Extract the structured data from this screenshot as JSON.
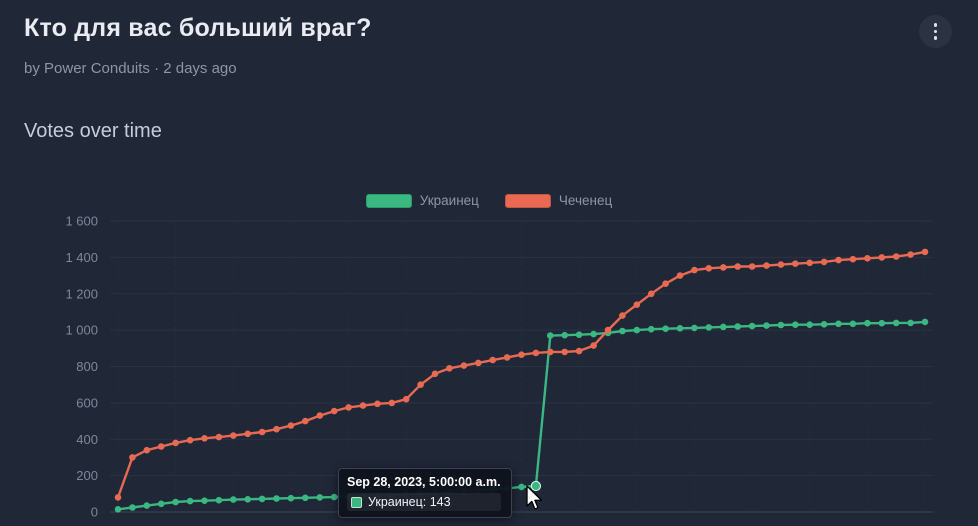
{
  "header": {
    "title": "Кто для вас больший враг?",
    "byline": "by Power Conduits · 2 days ago"
  },
  "section": {
    "title": "Votes over time"
  },
  "colors": {
    "background": "#202737",
    "series_green": "#3bb882",
    "series_red": "#e96a53",
    "grid": "#2b3344",
    "text_primary": "#e9ecf2",
    "text_muted": "#8d96a7"
  },
  "chart_data": {
    "type": "line",
    "title": "Votes over time",
    "legend_position": "top-center",
    "grid": true,
    "xlabel": "",
    "ylabel": "",
    "ylim": [
      0,
      1600
    ],
    "yticks": [
      0,
      200,
      400,
      600,
      800,
      1000,
      1200,
      1400,
      1600
    ],
    "ytick_labels": [
      "0",
      "200",
      "400",
      "600",
      "800",
      "1 000",
      "1 200",
      "1 400",
      "1 600"
    ],
    "hovered": {
      "series_index": 0,
      "point_index": 29
    },
    "series": [
      {
        "name": "Украинец",
        "color": "#3bb882",
        "values": [
          15,
          25,
          35,
          45,
          55,
          60,
          62,
          65,
          68,
          70,
          72,
          74,
          76,
          78,
          80,
          82,
          84,
          86,
          88,
          90,
          95,
          100,
          105,
          110,
          115,
          120,
          125,
          130,
          138,
          143,
          970,
          972,
          975,
          978,
          985,
          995,
          1000,
          1005,
          1008,
          1010,
          1012,
          1015,
          1018,
          1020,
          1022,
          1025,
          1028,
          1030,
          1030,
          1032,
          1035,
          1035,
          1038,
          1038,
          1040,
          1040,
          1045
        ]
      },
      {
        "name": "Чеченец",
        "color": "#e96a53",
        "values": [
          80,
          300,
          340,
          360,
          380,
          395,
          405,
          412,
          420,
          430,
          440,
          455,
          475,
          500,
          530,
          555,
          575,
          585,
          595,
          600,
          620,
          700,
          760,
          790,
          805,
          820,
          835,
          850,
          865,
          875,
          880,
          880,
          885,
          915,
          1000,
          1080,
          1140,
          1200,
          1255,
          1300,
          1330,
          1340,
          1345,
          1350,
          1350,
          1355,
          1360,
          1365,
          1370,
          1375,
          1385,
          1390,
          1395,
          1400,
          1405,
          1415,
          1430
        ]
      }
    ]
  },
  "tooltip": {
    "date": "Sep 28, 2023, 5:00:00 a.m.",
    "series": "Украинец",
    "value": 143,
    "label": "Украинец: 143"
  }
}
